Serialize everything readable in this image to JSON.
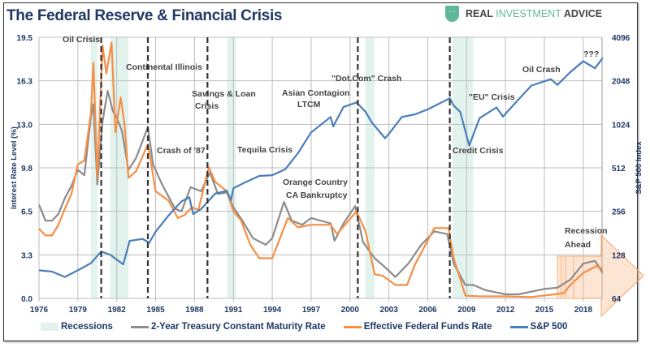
{
  "header": {
    "title": "The Federal Reserve & Financial Crisis",
    "logo_text_1": "REAL ",
    "logo_text_2": "INVESTMENT",
    "logo_text_3": " ADVICE"
  },
  "chart_data": {
    "type": "line",
    "title": "The Federal Reserve & Financial Crisis",
    "ylabel": "Interest Rate Level (%)",
    "y2label": "S&P 500 Index",
    "xlim": [
      1976,
      2019.6
    ],
    "ylim": [
      0,
      19.5
    ],
    "y2lim": [
      64,
      4096
    ],
    "y2scale": "log2",
    "grid": true,
    "legend_position": "bottom",
    "x_ticks": [
      "1976",
      "1979",
      "1982",
      "1985",
      "1988",
      "1991",
      "1994",
      "1997",
      "2000",
      "2003",
      "2006",
      "2009",
      "2012",
      "2015",
      "2018"
    ],
    "y_ticks": [
      "19.5",
      "16.3",
      "13.0",
      "9.8",
      "6.5",
      "3.3",
      "0.0"
    ],
    "y2_ticks": [
      "4096",
      "2048",
      "1024",
      "512",
      "256",
      "128",
      "64"
    ],
    "recessions": [
      [
        1980.0,
        1980.5
      ],
      [
        1981.5,
        1982.9
      ],
      [
        1990.5,
        1991.2
      ],
      [
        2001.2,
        2001.9
      ],
      [
        2007.9,
        2009.5
      ]
    ],
    "crisis_lines": [
      1980.8,
      1984.4,
      1989.0,
      2000.6,
      2007.7
    ],
    "series": [
      {
        "name": "2-Year Treasury Constant Maturity Rate",
        "axis": "left",
        "color": "#8c8c8c",
        "x": [
          1976,
          1976.5,
          1977,
          1977.5,
          1978,
          1978.5,
          1979,
          1979.5,
          1980,
          1980.2,
          1980.5,
          1980.9,
          1981.3,
          1981.7,
          1982,
          1982.4,
          1982.9,
          1983.5,
          1984.4,
          1984.8,
          1985.5,
          1986.5,
          1987,
          1987.7,
          1988.5,
          1989.2,
          1989.8,
          1990.5,
          1991,
          1991.7,
          1992.5,
          1993.5,
          1994,
          1994.9,
          1995.5,
          1996.3,
          1997,
          1998.5,
          1998.8,
          1999.5,
          2000.4,
          2001,
          2001.9,
          2002.5,
          2003.5,
          2004.5,
          2005.5,
          2006.5,
          2007.5,
          2008,
          2008.9,
          2009.5,
          2010.5,
          2012,
          2013,
          2014,
          2015,
          2016,
          2017,
          2018,
          2018.9,
          2019.5
        ],
        "values": [
          7.0,
          5.8,
          5.8,
          6.3,
          7.5,
          8.4,
          9.6,
          9.2,
          13.5,
          14.5,
          8.5,
          13.2,
          15.5,
          14.0,
          13.5,
          12.5,
          9.6,
          10.5,
          12.8,
          10.0,
          8.5,
          6.7,
          6.5,
          8.3,
          8.0,
          9.4,
          7.8,
          7.9,
          6.8,
          5.8,
          4.5,
          4.0,
          4.5,
          7.2,
          5.8,
          5.5,
          6.0,
          5.6,
          4.3,
          5.6,
          6.9,
          4.2,
          3.0,
          2.5,
          1.6,
          2.6,
          4.0,
          5.0,
          4.8,
          2.6,
          1.0,
          1.0,
          0.6,
          0.3,
          0.3,
          0.5,
          0.7,
          0.8,
          1.4,
          2.6,
          2.8,
          1.9
        ]
      },
      {
        "name": "Effective Federal Funds Rate",
        "axis": "left",
        "color": "#f58f45",
        "x": [
          1976,
          1976.5,
          1977,
          1977.5,
          1978,
          1978.5,
          1979,
          1979.5,
          1980,
          1980.2,
          1980.5,
          1980.9,
          1981.2,
          1981.6,
          1981.9,
          1982.3,
          1982.6,
          1982.9,
          1983.5,
          1984.4,
          1984.7,
          1985,
          1986,
          1986.7,
          1987.2,
          1987.8,
          1988.3,
          1989.1,
          1989.6,
          1990.5,
          1991,
          1991.6,
          1992.3,
          1993,
          1994,
          1994.6,
          1995.2,
          1996,
          1997,
          1998.5,
          1999,
          2000.5,
          2001.2,
          2001.9,
          2002.5,
          2003.5,
          2004.4,
          2005,
          2006.5,
          2007.6,
          2008,
          2008.9,
          2010,
          2012,
          2014,
          2015.8,
          2016.5,
          2017,
          2018,
          2019,
          2019.5
        ],
        "values": [
          5.2,
          4.7,
          4.7,
          5.5,
          6.7,
          7.8,
          10.0,
          10.3,
          13.8,
          17.6,
          9.0,
          18.9,
          16.8,
          19.1,
          12.4,
          15.0,
          13.0,
          9.0,
          9.5,
          11.5,
          9.8,
          8.0,
          7.3,
          6.0,
          6.2,
          6.8,
          6.6,
          9.8,
          8.7,
          8.0,
          6.5,
          5.8,
          4.0,
          3.0,
          3.0,
          4.5,
          6.0,
          5.3,
          5.5,
          5.5,
          4.8,
          6.5,
          5.0,
          1.8,
          1.7,
          1.0,
          1.0,
          2.5,
          5.25,
          5.25,
          3.0,
          0.2,
          0.15,
          0.15,
          0.1,
          0.3,
          0.4,
          1.0,
          1.9,
          2.4,
          2.2
        ]
      },
      {
        "name": "S&P 500",
        "axis": "right",
        "color": "#4a7ebb",
        "x": [
          1976,
          1977,
          1978,
          1979,
          1980,
          1980.8,
          1981.5,
          1982.5,
          1983,
          1984,
          1984.5,
          1985,
          1986,
          1987,
          1987.6,
          1987.9,
          1988.5,
          1989.6,
          1990.5,
          1990.8,
          1991,
          1992,
          1993,
          1994,
          1995,
          1996,
          1997,
          1998.5,
          1998.7,
          1999.5,
          2000.5,
          2001.2,
          2001.7,
          2002.7,
          2003,
          2004,
          2005,
          2006,
          2007.7,
          2008,
          2008.5,
          2009.2,
          2010,
          2011.3,
          2011.8,
          2013,
          2014,
          2015.5,
          2016,
          2017,
          2018,
          2018.9,
          2019.5
        ],
        "values": [
          100,
          98,
          90,
          100,
          112,
          135,
          128,
          110,
          160,
          165,
          155,
          185,
          240,
          300,
          320,
          245,
          265,
          340,
          355,
          305,
          370,
          410,
          450,
          455,
          500,
          650,
          900,
          1150,
          990,
          1350,
          1450,
          1250,
          1050,
          820,
          880,
          1150,
          1200,
          1300,
          1550,
          1380,
          1250,
          730,
          1130,
          1340,
          1160,
          1520,
          1900,
          2100,
          1920,
          2350,
          2800,
          2500,
          2950
        ]
      }
    ],
    "annotations": [
      "Oil Crisis",
      "Continental Illinois",
      "Savings & Loan",
      "Crisis",
      "Crash of '87",
      "Tequila Crisis",
      "Asian Contagion",
      "LTCM",
      "Orange Country",
      "CA Bankruptcy",
      "\"Dot.Com\" Crash",
      "Credit Crisis",
      "\"EU\" Crisis",
      "Oil Crash",
      "???",
      "Recession",
      "Ahead"
    ]
  },
  "legend": {
    "recessions": "Recessions",
    "treasury": "2-Year Treasury Constant Maturity Rate",
    "fedfunds": "Effective Federal Funds Rate",
    "sp500": "S&P 500"
  },
  "colors": {
    "recession": "#e2f3ee",
    "treasury": "#8c8c8c",
    "fedfunds": "#f58f45",
    "sp500": "#4a7ebb",
    "title": "#1f3864"
  }
}
